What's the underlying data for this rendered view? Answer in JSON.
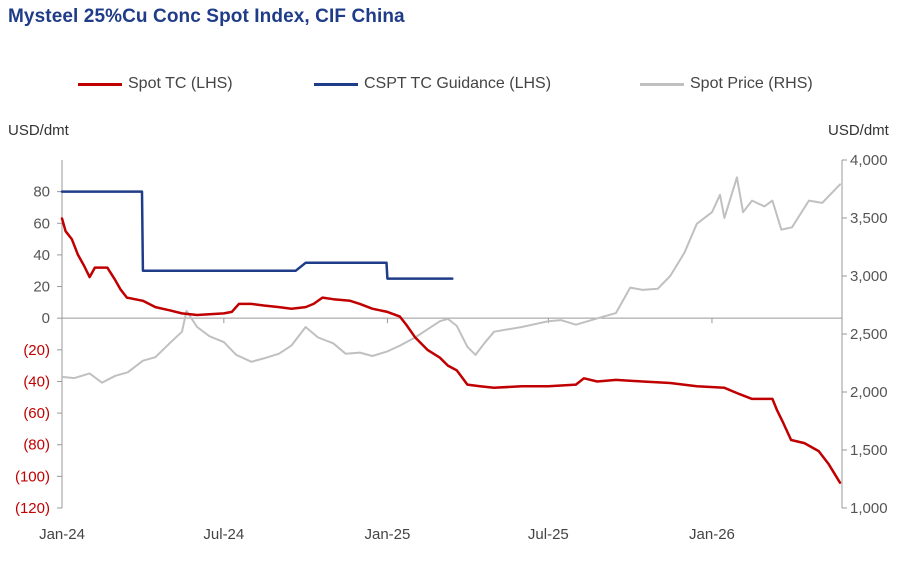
{
  "chart_data": {
    "type": "line",
    "title": "Mysteel 25%Cu Conc Spot Index, CIF China",
    "y_left_label": "USD/dmt",
    "y_right_label": "USD/dmt",
    "y_left_range": [
      -120,
      100
    ],
    "y_left_ticks": [
      "80",
      "60",
      "40",
      "20",
      "0",
      "(20)",
      "(40)",
      "(60)",
      "(80)",
      "(100)",
      "(120)"
    ],
    "y_left_tick_values": [
      80,
      60,
      40,
      20,
      0,
      -20,
      -40,
      -60,
      -80,
      -100,
      -120
    ],
    "y_right_range": [
      1000,
      4000
    ],
    "y_right_ticks": [
      "4,000",
      "3,500",
      "3,000",
      "2,500",
      "2,000",
      "1,500",
      "1,000"
    ],
    "y_right_tick_values": [
      4000,
      3500,
      3000,
      2500,
      2000,
      1500,
      1000
    ],
    "x_range": [
      "2024-01-01",
      "2026-05-25"
    ],
    "x_ticks": [
      "Jan-24",
      "Jul-24",
      "Jan-25",
      "Jul-25",
      "Jan-26"
    ],
    "x_tick_dates": [
      "2024-01-01",
      "2024-07-01",
      "2025-01-01",
      "2025-07-01",
      "2026-01-01"
    ],
    "legend_position": "top",
    "grid": false,
    "series": [
      {
        "name": "Spot TC (LHS)",
        "axis": "left",
        "color": "#c00000",
        "points": [
          [
            "2024-01-01",
            63
          ],
          [
            "2024-01-05",
            55
          ],
          [
            "2024-01-12",
            50
          ],
          [
            "2024-01-19",
            40
          ],
          [
            "2024-01-26",
            33
          ],
          [
            "2024-02-01",
            26
          ],
          [
            "2024-02-07",
            32
          ],
          [
            "2024-02-21",
            32
          ],
          [
            "2024-03-01",
            24
          ],
          [
            "2024-03-07",
            18
          ],
          [
            "2024-03-14",
            13
          ],
          [
            "2024-04-01",
            11
          ],
          [
            "2024-04-15",
            7
          ],
          [
            "2024-05-01",
            5
          ],
          [
            "2024-05-15",
            3
          ],
          [
            "2024-06-01",
            2
          ],
          [
            "2024-07-01",
            3
          ],
          [
            "2024-07-10",
            4
          ],
          [
            "2024-07-18",
            9
          ],
          [
            "2024-08-01",
            9
          ],
          [
            "2024-08-15",
            8
          ],
          [
            "2024-09-01",
            7
          ],
          [
            "2024-09-15",
            6
          ],
          [
            "2024-10-01",
            7
          ],
          [
            "2024-10-10",
            9
          ],
          [
            "2024-10-20",
            13
          ],
          [
            "2024-11-01",
            12
          ],
          [
            "2024-11-20",
            11
          ],
          [
            "2024-12-01",
            9
          ],
          [
            "2024-12-15",
            6
          ],
          [
            "2025-01-01",
            4
          ],
          [
            "2025-01-15",
            1
          ],
          [
            "2025-01-22",
            -4
          ],
          [
            "2025-02-01",
            -12
          ],
          [
            "2025-02-15",
            -20
          ],
          [
            "2025-03-01",
            -25
          ],
          [
            "2025-03-10",
            -30
          ],
          [
            "2025-03-20",
            -33
          ],
          [
            "2025-04-01",
            -42
          ],
          [
            "2025-04-15",
            -43
          ],
          [
            "2025-05-01",
            -44
          ],
          [
            "2025-06-01",
            -43
          ],
          [
            "2025-07-01",
            -43
          ],
          [
            "2025-08-01",
            -42
          ],
          [
            "2025-08-10",
            -38
          ],
          [
            "2025-08-25",
            -40
          ],
          [
            "2025-09-15",
            -39
          ],
          [
            "2025-10-15",
            -40
          ],
          [
            "2025-11-15",
            -41
          ],
          [
            "2025-12-15",
            -43
          ],
          [
            "2026-01-15",
            -44
          ],
          [
            "2026-02-01",
            -48
          ],
          [
            "2026-02-15",
            -51
          ],
          [
            "2026-03-01",
            -51
          ],
          [
            "2026-03-10",
            -51
          ],
          [
            "2026-03-15",
            -58
          ],
          [
            "2026-03-22",
            -66
          ],
          [
            "2026-03-31",
            -77
          ],
          [
            "2026-04-15",
            -79
          ],
          [
            "2026-05-01",
            -84
          ],
          [
            "2026-05-12",
            -92
          ],
          [
            "2026-05-25",
            -104
          ]
        ]
      },
      {
        "name": "CSPT TC Guidance (LHS)",
        "axis": "left",
        "color": "#1f3c88",
        "points": [
          [
            "2024-01-01",
            80
          ],
          [
            "2024-03-31",
            80
          ],
          [
            "2024-04-01",
            30
          ],
          [
            "2024-09-20",
            30
          ],
          [
            "2024-10-01",
            35
          ],
          [
            "2024-12-31",
            35
          ],
          [
            "2025-01-01",
            25
          ],
          [
            "2025-03-15",
            25
          ]
        ]
      },
      {
        "name": "Spot Price (RHS)",
        "axis": "right",
        "color": "#c0c0c0",
        "points": [
          [
            "2024-01-01",
            2130
          ],
          [
            "2024-01-15",
            2120
          ],
          [
            "2024-02-01",
            2160
          ],
          [
            "2024-02-15",
            2080
          ],
          [
            "2024-03-01",
            2140
          ],
          [
            "2024-03-15",
            2170
          ],
          [
            "2024-04-01",
            2270
          ],
          [
            "2024-04-15",
            2300
          ],
          [
            "2024-05-01",
            2420
          ],
          [
            "2024-05-15",
            2520
          ],
          [
            "2024-05-20",
            2700
          ],
          [
            "2024-06-01",
            2560
          ],
          [
            "2024-06-15",
            2480
          ],
          [
            "2024-07-01",
            2430
          ],
          [
            "2024-07-15",
            2320
          ],
          [
            "2024-08-01",
            2260
          ],
          [
            "2024-08-15",
            2290
          ],
          [
            "2024-09-01",
            2330
          ],
          [
            "2024-09-15",
            2400
          ],
          [
            "2024-10-01",
            2560
          ],
          [
            "2024-10-15",
            2470
          ],
          [
            "2024-11-01",
            2420
          ],
          [
            "2024-11-15",
            2330
          ],
          [
            "2024-12-01",
            2340
          ],
          [
            "2024-12-15",
            2310
          ],
          [
            "2025-01-01",
            2350
          ],
          [
            "2025-01-15",
            2400
          ],
          [
            "2025-02-01",
            2470
          ],
          [
            "2025-02-15",
            2540
          ],
          [
            "2025-03-01",
            2610
          ],
          [
            "2025-03-10",
            2630
          ],
          [
            "2025-03-20",
            2570
          ],
          [
            "2025-04-01",
            2390
          ],
          [
            "2025-04-10",
            2320
          ],
          [
            "2025-04-20",
            2420
          ],
          [
            "2025-05-01",
            2520
          ],
          [
            "2025-06-01",
            2560
          ],
          [
            "2025-07-01",
            2610
          ],
          [
            "2025-07-15",
            2620
          ],
          [
            "2025-08-01",
            2580
          ],
          [
            "2025-09-01",
            2650
          ],
          [
            "2025-09-15",
            2680
          ],
          [
            "2025-10-01",
            2900
          ],
          [
            "2025-10-15",
            2880
          ],
          [
            "2025-11-01",
            2890
          ],
          [
            "2025-11-15",
            3000
          ],
          [
            "2025-12-01",
            3200
          ],
          [
            "2025-12-15",
            3450
          ],
          [
            "2026-01-01",
            3550
          ],
          [
            "2026-01-10",
            3700
          ],
          [
            "2026-01-15",
            3500
          ],
          [
            "2026-01-29",
            3850
          ],
          [
            "2026-02-05",
            3550
          ],
          [
            "2026-02-15",
            3650
          ],
          [
            "2026-03-01",
            3600
          ],
          [
            "2026-03-10",
            3650
          ],
          [
            "2026-03-20",
            3400
          ],
          [
            "2026-04-01",
            3420
          ],
          [
            "2026-04-20",
            3650
          ],
          [
            "2026-05-05",
            3630
          ],
          [
            "2026-05-25",
            3790
          ]
        ]
      }
    ]
  }
}
